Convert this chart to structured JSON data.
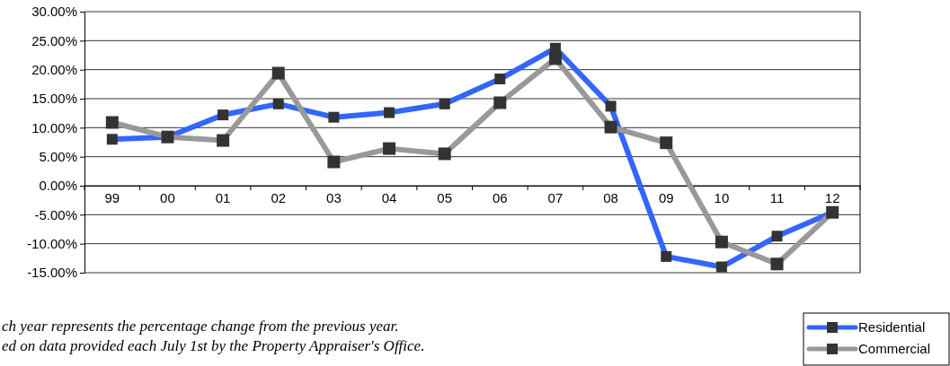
{
  "chart_data": {
    "type": "line",
    "categories": [
      "99",
      "00",
      "01",
      "02",
      "03",
      "04",
      "05",
      "06",
      "07",
      "08",
      "09",
      "10",
      "11",
      "12"
    ],
    "series": [
      {
        "name": "Residential",
        "color": "#3366ff",
        "values": [
          8.0,
          8.4,
          12.2,
          14.1,
          11.8,
          12.6,
          14.1,
          18.4,
          23.7,
          13.7,
          -12.2,
          -14.0,
          -8.7,
          -4.6
        ]
      },
      {
        "name": "Commercial",
        "color": "#999999",
        "values": [
          10.9,
          8.4,
          7.8,
          19.4,
          4.1,
          6.4,
          5.5,
          14.3,
          21.9,
          10.1,
          7.4,
          -9.7,
          -13.5,
          -4.6
        ]
      }
    ],
    "ylim": [
      -15,
      30
    ],
    "yticks": [
      {
        "value": 30,
        "label": "30.00%"
      },
      {
        "value": 25,
        "label": "25.00%"
      },
      {
        "value": 20,
        "label": "20.00%"
      },
      {
        "value": 15,
        "label": "15.00%"
      },
      {
        "value": 10,
        "label": "10.00%"
      },
      {
        "value": 5,
        "label": "5.00%"
      },
      {
        "value": 0,
        "label": "0.00%"
      },
      {
        "value": -5,
        "label": "-5.00%"
      },
      {
        "value": -10,
        "label": "-10.00%"
      },
      {
        "value": -15,
        "label": "-15.00%"
      }
    ],
    "grid": "y",
    "marker": "square",
    "line_style": "solid",
    "legend": "bottom right",
    "annotations": [
      "ch year represents the percentage change from the previous year.",
      "ed on data provided each July 1st by the Property Appraiser's Office."
    ]
  }
}
